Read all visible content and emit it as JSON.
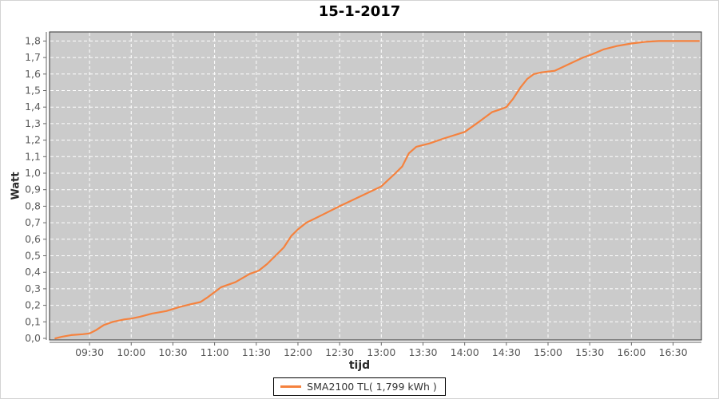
{
  "window": {
    "background": "#ffffff"
  },
  "chart_data": {
    "type": "line",
    "title": "15-1-2017",
    "xlabel": "tijd",
    "ylabel": "Watt",
    "grid": true,
    "legend_position": "bottom",
    "ylim": [
      0,
      1.8
    ],
    "y_tick_step": 0.1,
    "y_tick_labels": [
      "0,0",
      "0,1",
      "0,2",
      "0,3",
      "0,4",
      "0,5",
      "0,6",
      "0,7",
      "0,8",
      "0,9",
      "1,0",
      "1,1",
      "1,2",
      "1,3",
      "1,4",
      "1,5",
      "1,6",
      "1,7",
      "1,8"
    ],
    "decimal_separator": ",",
    "xlim_hours": [
      9.02,
      16.84
    ],
    "x_ticks": [
      "09:30",
      "10:00",
      "10:30",
      "11:00",
      "11:30",
      "12:00",
      "12:30",
      "13:00",
      "13:30",
      "14:00",
      "14:30",
      "15:00",
      "15:30",
      "16:00",
      "16:30"
    ],
    "x_tick_hours": [
      9.5,
      10.0,
      10.5,
      11.0,
      11.5,
      12.0,
      12.5,
      13.0,
      13.5,
      14.0,
      14.5,
      15.0,
      15.5,
      16.0,
      16.5
    ],
    "series": [
      {
        "name": "SMA2100 TL( 1,799 kWh )",
        "color": "#f5823e",
        "total_kwh": "1,799",
        "points": [
          [
            9.09,
            0.0
          ],
          [
            9.17,
            0.01
          ],
          [
            9.28,
            0.02
          ],
          [
            9.42,
            0.025
          ],
          [
            9.5,
            0.03
          ],
          [
            9.58,
            0.05
          ],
          [
            9.67,
            0.08
          ],
          [
            9.78,
            0.1
          ],
          [
            9.92,
            0.115
          ],
          [
            10.0,
            0.12
          ],
          [
            10.1,
            0.13
          ],
          [
            10.25,
            0.15
          ],
          [
            10.42,
            0.165
          ],
          [
            10.58,
            0.19
          ],
          [
            10.7,
            0.205
          ],
          [
            10.83,
            0.22
          ],
          [
            10.92,
            0.25
          ],
          [
            11.0,
            0.28
          ],
          [
            11.08,
            0.31
          ],
          [
            11.25,
            0.34
          ],
          [
            11.42,
            0.39
          ],
          [
            11.53,
            0.41
          ],
          [
            11.63,
            0.45
          ],
          [
            11.73,
            0.5
          ],
          [
            11.83,
            0.55
          ],
          [
            11.92,
            0.62
          ],
          [
            12.0,
            0.66
          ],
          [
            12.1,
            0.7
          ],
          [
            12.3,
            0.75
          ],
          [
            12.5,
            0.8
          ],
          [
            12.75,
            0.86
          ],
          [
            13.0,
            0.92
          ],
          [
            13.17,
            1.0
          ],
          [
            13.25,
            1.04
          ],
          [
            13.33,
            1.12
          ],
          [
            13.42,
            1.16
          ],
          [
            13.58,
            1.18
          ],
          [
            13.75,
            1.21
          ],
          [
            14.0,
            1.25
          ],
          [
            14.17,
            1.31
          ],
          [
            14.33,
            1.37
          ],
          [
            14.42,
            1.385
          ],
          [
            14.5,
            1.4
          ],
          [
            14.58,
            1.45
          ],
          [
            14.67,
            1.52
          ],
          [
            14.75,
            1.57
          ],
          [
            14.83,
            1.6
          ],
          [
            14.92,
            1.61
          ],
          [
            15.08,
            1.62
          ],
          [
            15.25,
            1.66
          ],
          [
            15.42,
            1.7
          ],
          [
            15.53,
            1.72
          ],
          [
            15.67,
            1.75
          ],
          [
            15.83,
            1.77
          ],
          [
            16.0,
            1.785
          ],
          [
            16.17,
            1.795
          ],
          [
            16.33,
            1.8
          ],
          [
            16.6,
            1.8
          ],
          [
            16.81,
            1.8
          ]
        ]
      }
    ],
    "colors": {
      "plot_background": "#cbcbcb",
      "plot_border": "#333333",
      "gridline": "#ffffff",
      "axis_line": "#666666",
      "tick_label": "#595959",
      "axis_title": "#2b2b2b",
      "title": "#000000",
      "series_line": "#f5823e"
    }
  },
  "legend": {
    "label": "SMA2100 TL( 1,799 kWh )"
  }
}
